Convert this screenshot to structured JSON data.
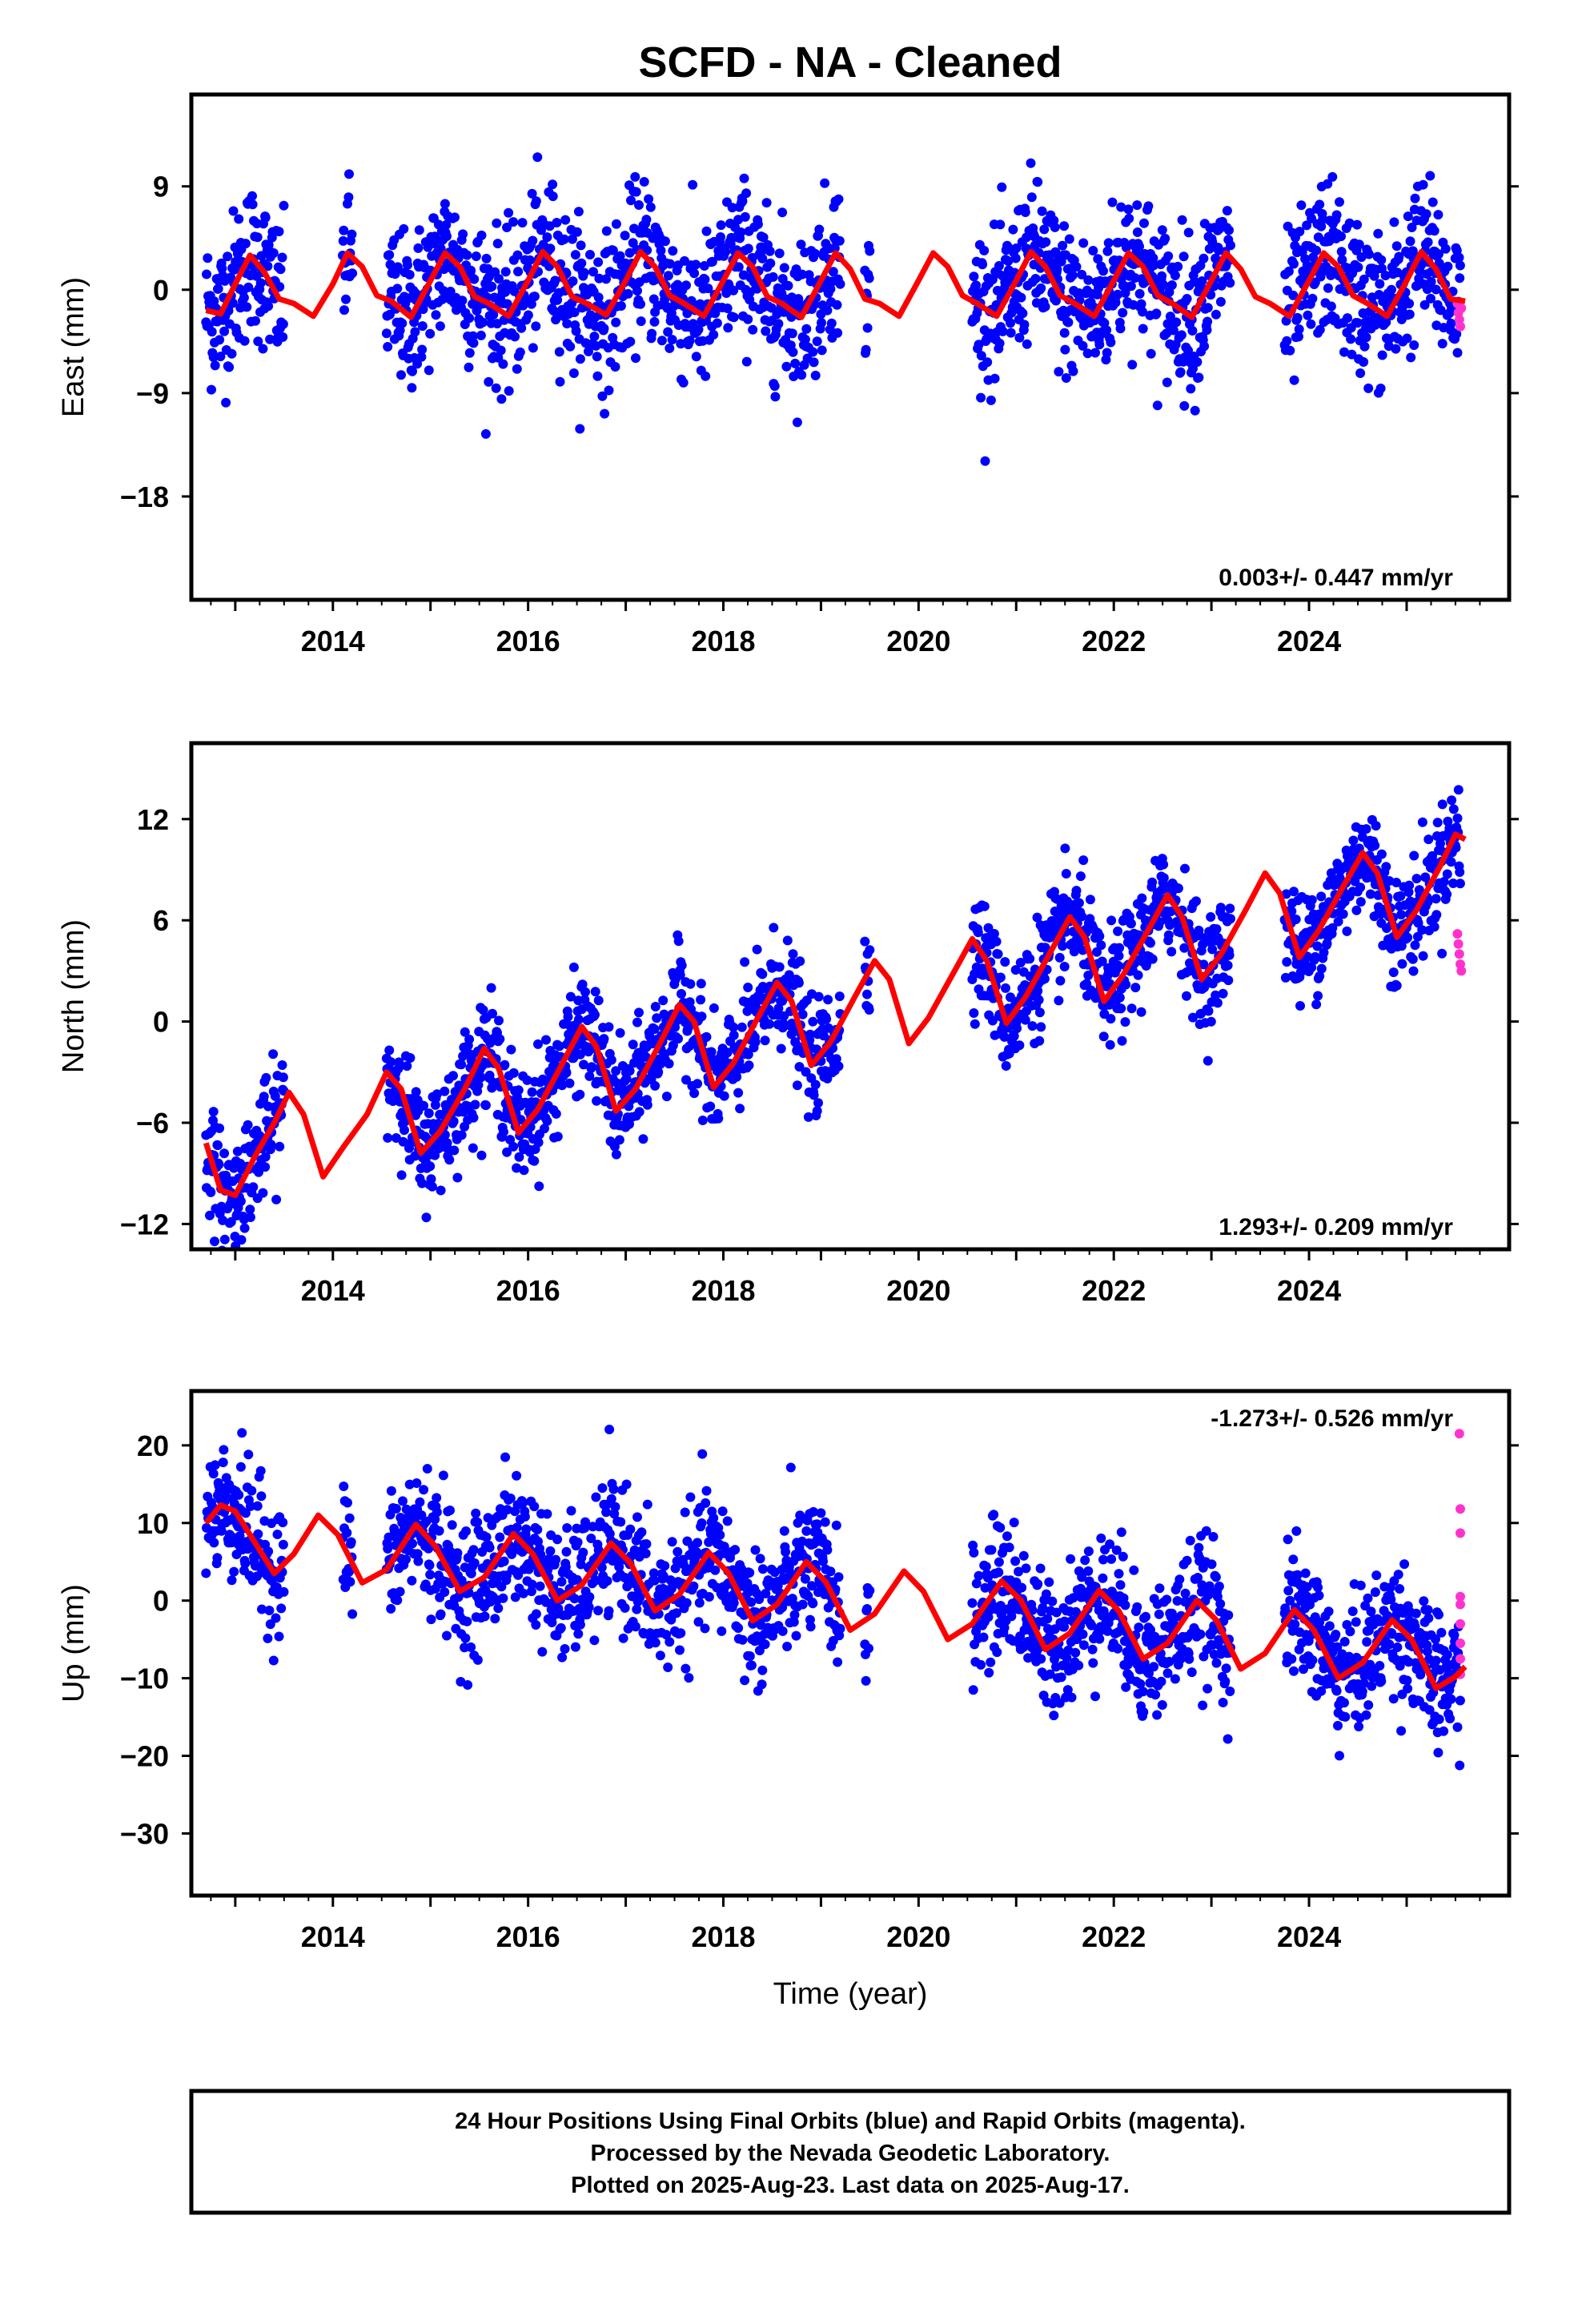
{
  "title": "SCFD  - NA - Cleaned",
  "colors": {
    "final": "#0000ff",
    "rapid": "#ff33cc",
    "model": "#ff0000",
    "frame": "#000000"
  },
  "xaxis": {
    "label": "Time (year)",
    "ticks": [
      "2014",
      "2016",
      "2018",
      "2020",
      "2022",
      "2024"
    ],
    "range": [
      2012.55,
      2026.05
    ]
  },
  "panels": [
    {
      "id": "east",
      "ylabel": "East (mm)",
      "rate": "0.003+/- 0.447 mm/yr",
      "rate_position": "bottom-right",
      "ylim": [
        -27,
        17
      ],
      "yticks": [
        {
          "value": 9,
          "label": "9"
        },
        {
          "value": 0,
          "label": "0"
        },
        {
          "value": -9,
          "label": "−9"
        },
        {
          "value": -18,
          "label": "−18"
        }
      ]
    },
    {
      "id": "north",
      "ylabel": "North (mm)",
      "rate": "1.293+/- 0.209 mm/yr",
      "rate_position": "bottom-right",
      "ylim": [
        -13.5,
        16.5
      ],
      "yticks": [
        {
          "value": 12,
          "label": "12"
        },
        {
          "value": 6,
          "label": "6"
        },
        {
          "value": 0,
          "label": "0"
        },
        {
          "value": -6,
          "label": "−6"
        },
        {
          "value": -12,
          "label": "−12"
        }
      ]
    },
    {
      "id": "up",
      "ylabel": "Up (mm)",
      "rate": "-1.273+/- 0.526 mm/yr",
      "rate_position": "top-right",
      "ylim": [
        -38,
        27
      ],
      "yticks": [
        {
          "value": 20,
          "label": "20"
        },
        {
          "value": 10,
          "label": "10"
        },
        {
          "value": 0,
          "label": "0"
        },
        {
          "value": -10,
          "label": "−10"
        },
        {
          "value": -20,
          "label": "−20"
        },
        {
          "value": -30,
          "label": "−30"
        }
      ]
    }
  ],
  "footer": [
    "24 Hour Positions Using Final Orbits (blue) and Rapid Orbits (magenta).",
    "Processed by the Nevada Geodetic Laboratory.",
    "Plotted on 2025-Aug-23. Last data on 2025-Aug-17."
  ],
  "chart_data": [
    {
      "type": "scatter",
      "component": "East",
      "ylabel": "East (mm)",
      "ylim": [
        -27,
        17
      ],
      "rate_mm_per_yr": 0.003,
      "rate_sigma_mm_per_yr": 0.447,
      "data_coverage": [
        [
          2012.7,
          2013.5
        ],
        [
          2014.1,
          2014.2
        ],
        [
          2014.55,
          2019.2
        ],
        [
          2019.45,
          2019.5
        ],
        [
          2020.55,
          2023.2
        ],
        [
          2023.75,
          2025.55
        ]
      ],
      "model_curve": [
        [
          2012.7,
          -1.8
        ],
        [
          2012.85,
          -2.1
        ],
        [
          2013.0,
          0.5
        ],
        [
          2013.15,
          3.0
        ],
        [
          2013.3,
          1.5
        ],
        [
          2013.45,
          -0.8
        ],
        [
          2013.6,
          -1.2
        ],
        [
          2013.8,
          -2.3
        ],
        [
          2014.0,
          0.5
        ],
        [
          2014.15,
          3.2
        ],
        [
          2014.3,
          2.0
        ],
        [
          2014.45,
          -0.5
        ],
        [
          2014.6,
          -1.0
        ],
        [
          2014.8,
          -2.4
        ],
        [
          2015.0,
          0.8
        ],
        [
          2015.15,
          3.2
        ],
        [
          2015.3,
          2.0
        ],
        [
          2015.45,
          -0.6
        ],
        [
          2015.6,
          -1.2
        ],
        [
          2015.8,
          -2.3
        ],
        [
          2016.0,
          0.8
        ],
        [
          2016.15,
          3.3
        ],
        [
          2016.3,
          2.0
        ],
        [
          2016.45,
          -0.6
        ],
        [
          2016.6,
          -1.2
        ],
        [
          2016.8,
          -2.2
        ],
        [
          2017.0,
          0.8
        ],
        [
          2017.15,
          3.3
        ],
        [
          2017.3,
          2.0
        ],
        [
          2017.45,
          -0.5
        ],
        [
          2017.6,
          -1.2
        ],
        [
          2017.8,
          -2.3
        ],
        [
          2018.0,
          0.8
        ],
        [
          2018.15,
          3.2
        ],
        [
          2018.3,
          2.0
        ],
        [
          2018.45,
          -0.6
        ],
        [
          2018.6,
          -1.2
        ],
        [
          2018.8,
          -2.4
        ],
        [
          2019.0,
          0.8
        ],
        [
          2019.15,
          3.2
        ],
        [
          2019.3,
          1.8
        ],
        [
          2019.45,
          -0.8
        ],
        [
          2019.6,
          -1.2
        ],
        [
          2019.8,
          -2.3
        ],
        [
          2020.0,
          0.8
        ],
        [
          2020.15,
          3.2
        ],
        [
          2020.3,
          2.0
        ],
        [
          2020.45,
          -0.5
        ],
        [
          2020.6,
          -1.2
        ],
        [
          2020.8,
          -2.3
        ],
        [
          2021.0,
          0.8
        ],
        [
          2021.15,
          3.3
        ],
        [
          2021.3,
          2.0
        ],
        [
          2021.45,
          -0.5
        ],
        [
          2021.6,
          -1.2
        ],
        [
          2021.8,
          -2.3
        ],
        [
          2022.0,
          0.8
        ],
        [
          2022.15,
          3.2
        ],
        [
          2022.3,
          2.0
        ],
        [
          2022.45,
          -0.5
        ],
        [
          2022.6,
          -1.2
        ],
        [
          2022.8,
          -2.4
        ],
        [
          2023.0,
          0.8
        ],
        [
          2023.15,
          3.2
        ],
        [
          2023.3,
          1.8
        ],
        [
          2023.45,
          -0.6
        ],
        [
          2023.6,
          -1.2
        ],
        [
          2023.8,
          -2.3
        ],
        [
          2024.0,
          0.8
        ],
        [
          2024.15,
          3.2
        ],
        [
          2024.3,
          2.0
        ],
        [
          2024.45,
          -0.5
        ],
        [
          2024.6,
          -1.2
        ],
        [
          2024.8,
          -2.3
        ],
        [
          2025.0,
          0.8
        ],
        [
          2025.15,
          3.3
        ],
        [
          2025.3,
          1.8
        ],
        [
          2025.45,
          -0.8
        ],
        [
          2025.6,
          -1.0
        ]
      ],
      "series": [
        {
          "name": "Final Orbits (blue)",
          "color": "#0000ff"
        },
        {
          "name": "Rapid Orbits (magenta)",
          "color": "#ff33cc",
          "points": [
            [
              2025.52,
              -1.2
            ],
            [
              2025.53,
              -2.0
            ],
            [
              2025.54,
              -2.6
            ],
            [
              2025.55,
              -3.2
            ],
            [
              2025.56,
              -1.6
            ]
          ]
        }
      ]
    },
    {
      "type": "scatter",
      "component": "North",
      "ylabel": "North (mm)",
      "ylim": [
        -13.5,
        16.5
      ],
      "rate_mm_per_yr": 1.293,
      "rate_sigma_mm_per_yr": 0.209,
      "data_coverage": [
        [
          2012.7,
          2013.5
        ],
        [
          2014.55,
          2019.2
        ],
        [
          2019.45,
          2019.5
        ],
        [
          2020.55,
          2023.2
        ],
        [
          2023.75,
          2025.55
        ]
      ],
      "model_curve": [
        [
          2012.7,
          -7.2
        ],
        [
          2012.85,
          -10.0
        ],
        [
          2013.0,
          -10.3
        ],
        [
          2013.2,
          -8.0
        ],
        [
          2013.4,
          -6.0
        ],
        [
          2013.55,
          -4.2
        ],
        [
          2013.7,
          -5.5
        ],
        [
          2013.9,
          -9.2
        ],
        [
          2014.1,
          -7.5
        ],
        [
          2014.35,
          -5.5
        ],
        [
          2014.55,
          -3.0
        ],
        [
          2014.7,
          -4.0
        ],
        [
          2014.9,
          -7.8
        ],
        [
          2015.1,
          -6.5
        ],
        [
          2015.35,
          -4.0
        ],
        [
          2015.55,
          -1.6
        ],
        [
          2015.7,
          -2.8
        ],
        [
          2015.9,
          -6.6
        ],
        [
          2016.1,
          -5.2
        ],
        [
          2016.35,
          -2.5
        ],
        [
          2016.55,
          -0.3
        ],
        [
          2016.7,
          -1.5
        ],
        [
          2016.9,
          -5.3
        ],
        [
          2017.1,
          -4.0
        ],
        [
          2017.35,
          -1.3
        ],
        [
          2017.55,
          1.0
        ],
        [
          2017.7,
          0.0
        ],
        [
          2017.9,
          -3.9
        ],
        [
          2018.1,
          -2.5
        ],
        [
          2018.35,
          0.2
        ],
        [
          2018.55,
          2.3
        ],
        [
          2018.7,
          1.2
        ],
        [
          2018.9,
          -2.6
        ],
        [
          2019.1,
          -1.2
        ],
        [
          2019.35,
          1.5
        ],
        [
          2019.55,
          3.6
        ],
        [
          2019.7,
          2.5
        ],
        [
          2019.9,
          -1.3
        ],
        [
          2020.1,
          0.2
        ],
        [
          2020.35,
          2.8
        ],
        [
          2020.55,
          4.9
        ],
        [
          2020.7,
          3.6
        ],
        [
          2020.9,
          -0.1
        ],
        [
          2021.1,
          1.5
        ],
        [
          2021.35,
          4.1
        ],
        [
          2021.55,
          6.2
        ],
        [
          2021.7,
          5.0
        ],
        [
          2021.9,
          1.2
        ],
        [
          2022.1,
          2.8
        ],
        [
          2022.35,
          5.4
        ],
        [
          2022.55,
          7.5
        ],
        [
          2022.7,
          6.2
        ],
        [
          2022.9,
          2.5
        ],
        [
          2023.1,
          4.0
        ],
        [
          2023.35,
          6.6
        ],
        [
          2023.55,
          8.8
        ],
        [
          2023.7,
          7.6
        ],
        [
          2023.9,
          3.8
        ],
        [
          2024.1,
          5.4
        ],
        [
          2024.35,
          8.0
        ],
        [
          2024.55,
          10.0
        ],
        [
          2024.7,
          8.8
        ],
        [
          2024.9,
          5.0
        ],
        [
          2025.1,
          6.6
        ],
        [
          2025.35,
          9.3
        ],
        [
          2025.5,
          11.1
        ],
        [
          2025.6,
          10.8
        ]
      ],
      "series": [
        {
          "name": "Final Orbits (blue)",
          "color": "#0000ff"
        },
        {
          "name": "Rapid Orbits (magenta)",
          "color": "#ff33cc",
          "points": [
            [
              2025.52,
              5.2
            ],
            [
              2025.53,
              4.6
            ],
            [
              2025.54,
              4.0
            ],
            [
              2025.55,
              3.4
            ],
            [
              2025.56,
              3.0
            ]
          ]
        }
      ]
    },
    {
      "type": "scatter",
      "component": "Up",
      "ylabel": "Up (mm)",
      "ylim": [
        -38,
        27
      ],
      "rate_mm_per_yr": -1.273,
      "rate_sigma_mm_per_yr": 0.526,
      "data_coverage": [
        [
          2012.7,
          2013.5
        ],
        [
          2014.1,
          2014.2
        ],
        [
          2014.55,
          2019.2
        ],
        [
          2019.45,
          2019.5
        ],
        [
          2020.55,
          2023.2
        ],
        [
          2023.75,
          2025.55
        ]
      ],
      "model_curve": [
        [
          2012.7,
          10.0
        ],
        [
          2012.85,
          12.3
        ],
        [
          2013.0,
          11.5
        ],
        [
          2013.2,
          7.5
        ],
        [
          2013.4,
          3.5
        ],
        [
          2013.6,
          6.0
        ],
        [
          2013.85,
          11.0
        ],
        [
          2014.05,
          8.5
        ],
        [
          2014.3,
          2.3
        ],
        [
          2014.55,
          4.0
        ],
        [
          2014.85,
          9.8
        ],
        [
          2015.05,
          7.0
        ],
        [
          2015.3,
          1.2
        ],
        [
          2015.55,
          3.0
        ],
        [
          2015.85,
          8.6
        ],
        [
          2016.05,
          6.0
        ],
        [
          2016.3,
          0.0
        ],
        [
          2016.55,
          2.0
        ],
        [
          2016.85,
          7.4
        ],
        [
          2017.05,
          4.8
        ],
        [
          2017.3,
          -1.3
        ],
        [
          2017.55,
          0.8
        ],
        [
          2017.85,
          6.2
        ],
        [
          2018.05,
          3.6
        ],
        [
          2018.3,
          -2.6
        ],
        [
          2018.55,
          -0.5
        ],
        [
          2018.85,
          5.0
        ],
        [
          2019.05,
          2.4
        ],
        [
          2019.3,
          -3.8
        ],
        [
          2019.55,
          -1.7
        ],
        [
          2019.85,
          3.8
        ],
        [
          2020.05,
          1.2
        ],
        [
          2020.3,
          -5.0
        ],
        [
          2020.55,
          -3.0
        ],
        [
          2020.85,
          2.5
        ],
        [
          2021.05,
          0.0
        ],
        [
          2021.3,
          -6.3
        ],
        [
          2021.55,
          -4.2
        ],
        [
          2021.85,
          1.3
        ],
        [
          2022.05,
          -1.3
        ],
        [
          2022.3,
          -7.5
        ],
        [
          2022.55,
          -5.5
        ],
        [
          2022.85,
          0.0
        ],
        [
          2023.05,
          -2.5
        ],
        [
          2023.3,
          -8.8
        ],
        [
          2023.55,
          -6.8
        ],
        [
          2023.85,
          -1.2
        ],
        [
          2024.05,
          -3.8
        ],
        [
          2024.3,
          -10.0
        ],
        [
          2024.55,
          -8.0
        ],
        [
          2024.85,
          -2.5
        ],
        [
          2025.05,
          -5.0
        ],
        [
          2025.3,
          -11.3
        ],
        [
          2025.5,
          -9.8
        ],
        [
          2025.6,
          -8.5
        ]
      ],
      "series": [
        {
          "name": "Final Orbits (blue)",
          "color": "#0000ff"
        },
        {
          "name": "Rapid Orbits (magenta)",
          "color": "#ff33cc",
          "points": [
            [
              2025.54,
              21.5
            ],
            [
              2025.55,
              11.8
            ],
            [
              2025.55,
              8.7
            ],
            [
              2025.55,
              0.5
            ],
            [
              2025.55,
              -0.5
            ],
            [
              2025.55,
              -3.0
            ],
            [
              2025.55,
              -5.5
            ],
            [
              2025.55,
              -7.5
            ],
            [
              2025.55,
              -9.5
            ]
          ]
        }
      ]
    }
  ]
}
